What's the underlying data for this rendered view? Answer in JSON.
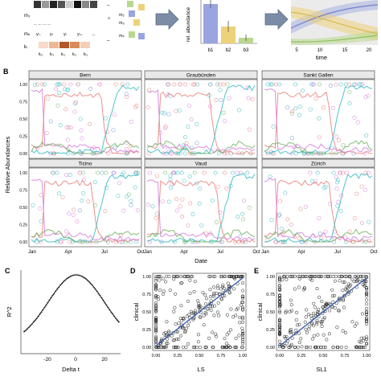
{
  "panelA": {
    "matrix_labels": [
      "m₃",
      "mₙ",
      "kₗ",
      "m₂",
      "m₃",
      "mₙ"
    ],
    "sequence_y": [
      "yₗ₋",
      "yₗ",
      "yₗ",
      "yₗ₊",
      "..."
    ],
    "sequence_k": [
      "kₗ₂",
      "kₗ₂",
      "kₗ₂",
      "kₗ₂",
      "kₗ₂"
    ],
    "bar_ylabel": "rel. abundance",
    "bar_labels": [
      "b1",
      "b2",
      "b3"
    ],
    "time_label": "time",
    "time_ticks": [
      "5",
      "10",
      "15",
      "20"
    ]
  },
  "panelB": {
    "letter": "B",
    "ylabel": "Relative Abundances",
    "xlabel": "Date",
    "x_ticks": [
      "Jan",
      "Apr",
      "Jul",
      "Oct"
    ],
    "y_ticks": [
      "0.00",
      "0.25",
      "0.50",
      "0.75",
      "1.00"
    ],
    "facets": [
      "Bern",
      "Graubünden",
      "Sankt Gallen",
      "Ticino",
      "Vaud",
      "Zürich"
    ]
  },
  "panelC": {
    "letter": "C",
    "ylabel": "R^2",
    "xlabel": "Delta t",
    "x_ticks": [
      "-20",
      "0",
      "20"
    ]
  },
  "panelD": {
    "letter": "D",
    "ylabel": "clinical",
    "xlabel": "LS",
    "x_ticks": [
      "0.00",
      "0.25",
      "0.50",
      "0.75",
      "1.00"
    ],
    "y_ticks": [
      "0.00",
      "0.25",
      "0.50",
      "0.75",
      "1.00"
    ]
  },
  "panelE": {
    "letter": "E",
    "ylabel": "clinical",
    "xlabel": "SL1",
    "x_ticks": [
      "0.00",
      "0.25",
      "0.50",
      "0.75",
      "1.00"
    ],
    "y_ticks": [
      "0.00",
      "0.25",
      "0.50",
      "0.75",
      "1.00"
    ]
  },
  "colors": {
    "bar1": "#9aa4e0",
    "bar2": "#eed27a",
    "bar3": "#b9d88e",
    "lin_red": "#e8807a",
    "lin_pink": "#d77ad9",
    "lin_teal": "#33b9c0",
    "lin_green": "#6fb35f",
    "lin_blue": "#6c8ed8",
    "fit_blue": "#3a5fb0",
    "strip": "#e8e8e8",
    "arrow": "#7b8da6"
  }
}
